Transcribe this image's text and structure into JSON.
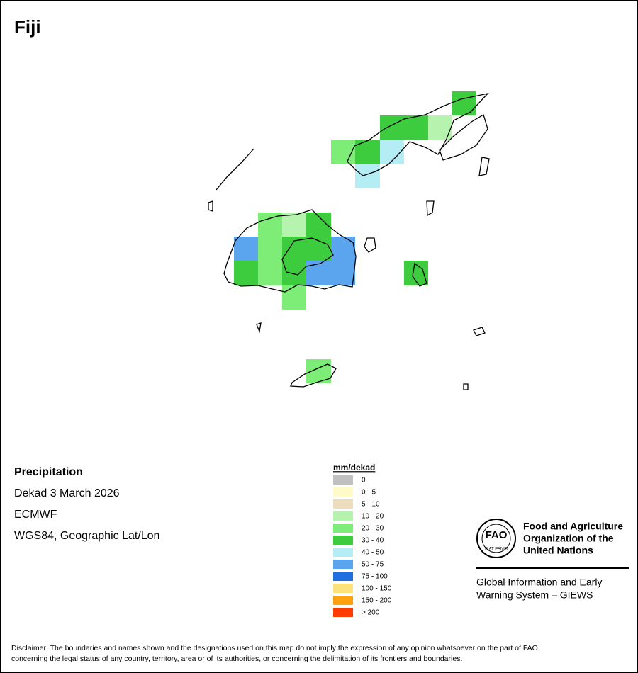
{
  "header": {
    "title": "Fiji"
  },
  "info": {
    "heading": "Precipitation",
    "lines": [
      "Dekad 3 March 2026",
      "ECMWF",
      "WGS84, Geographic Lat/Lon"
    ]
  },
  "legend": {
    "title": "mm/dekad",
    "items": [
      {
        "label": "0",
        "color": "#c0c0c0"
      },
      {
        "label": "0 - 5",
        "color": "#fffbc8"
      },
      {
        "label": "5 - 10",
        "color": "#ecdcbc"
      },
      {
        "label": "10 - 20",
        "color": "#b5f3ae"
      },
      {
        "label": "20 - 30",
        "color": "#7ded78"
      },
      {
        "label": "30 - 40",
        "color": "#3dcc3d"
      },
      {
        "label": "40 - 50",
        "color": "#b4eef4"
      },
      {
        "label": "50 - 75",
        "color": "#5aa5ee"
      },
      {
        "label": "75 - 100",
        "color": "#1f6fe0"
      },
      {
        "label": "100 - 150",
        "color": "#fde27a"
      },
      {
        "label": "150 - 200",
        "color": "#fda10c"
      },
      {
        "label": "> 200",
        "color": "#fe3b00"
      }
    ]
  },
  "logo": {
    "mark": "FAO",
    "motto": "FIAT PANIS",
    "org": [
      "Food and Agriculture",
      "Organization of the",
      "United Nations"
    ],
    "system": [
      "Global Information and Early",
      "Warning System – GIEWS"
    ]
  },
  "disclaimer": [
    "Disclaimer: The boundaries and names shown and the designations used on this map do not imply the expression of any opinion whatsoever on the part of FAO",
    "concerning the legal status of any country, territory, area or of its authorities, or concerning the delimitation of its frontiers and boundaries."
  ]
}
